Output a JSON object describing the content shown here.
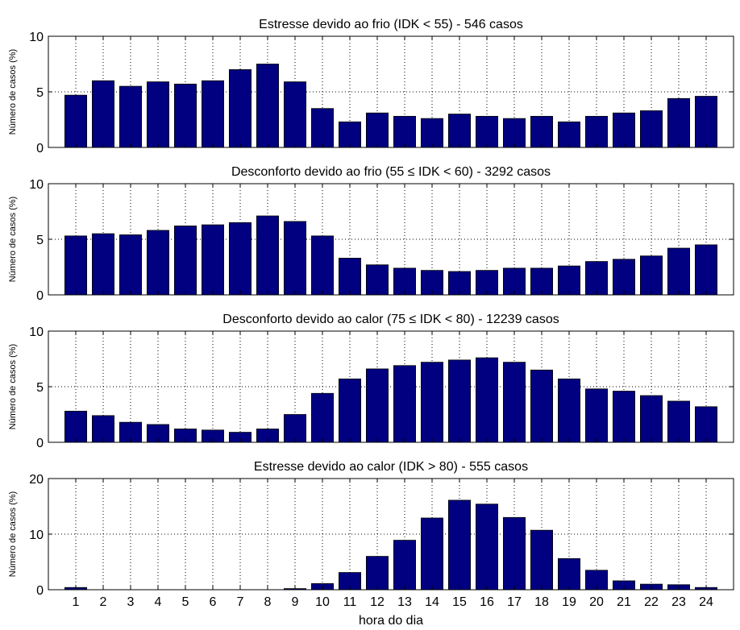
{
  "chart_data": [
    {
      "type": "bar",
      "title": "Estresse devido ao frio (IDK < 55) - 546 casos",
      "ylabel": "Número de casos (%)",
      "xlabel": "",
      "categories": [
        "1",
        "2",
        "3",
        "4",
        "5",
        "6",
        "7",
        "8",
        "9",
        "10",
        "11",
        "12",
        "13",
        "14",
        "15",
        "16",
        "17",
        "18",
        "19",
        "20",
        "21",
        "22",
        "23",
        "24"
      ],
      "values": [
        4.7,
        6.0,
        5.5,
        5.9,
        5.7,
        6.0,
        7.0,
        7.5,
        5.9,
        3.5,
        2.3,
        3.1,
        2.8,
        2.6,
        3.0,
        2.8,
        2.6,
        2.8,
        2.3,
        2.8,
        3.1,
        3.3,
        4.4,
        4.6
      ],
      "ylim": [
        0,
        10
      ],
      "yticks": [
        "0",
        "5",
        "10"
      ],
      "bar_color": "#000080",
      "grid": true
    },
    {
      "type": "bar",
      "title": "Desconforto devido ao frio (55 ≤ IDK < 60) - 3292 casos",
      "ylabel": "Número de casos (%)",
      "xlabel": "",
      "categories": [
        "1",
        "2",
        "3",
        "4",
        "5",
        "6",
        "7",
        "8",
        "9",
        "10",
        "11",
        "12",
        "13",
        "14",
        "15",
        "16",
        "17",
        "18",
        "19",
        "20",
        "21",
        "22",
        "23",
        "24"
      ],
      "values": [
        5.3,
        5.5,
        5.4,
        5.8,
        6.2,
        6.3,
        6.5,
        7.1,
        6.6,
        5.3,
        3.3,
        2.7,
        2.4,
        2.2,
        2.1,
        2.2,
        2.4,
        2.4,
        2.6,
        3.0,
        3.2,
        3.5,
        4.2,
        4.5
      ],
      "ylim": [
        0,
        10
      ],
      "yticks": [
        "0",
        "5",
        "10"
      ],
      "bar_color": "#000080",
      "grid": true
    },
    {
      "type": "bar",
      "title": "Desconforto devido ao calor (75 ≤ IDK < 80) - 12239 casos",
      "ylabel": "Número de casos (%)",
      "xlabel": "",
      "categories": [
        "1",
        "2",
        "3",
        "4",
        "5",
        "6",
        "7",
        "8",
        "9",
        "10",
        "11",
        "12",
        "13",
        "14",
        "15",
        "16",
        "17",
        "18",
        "19",
        "20",
        "21",
        "22",
        "23",
        "24"
      ],
      "values": [
        2.8,
        2.4,
        1.8,
        1.6,
        1.2,
        1.1,
        0.9,
        1.2,
        2.5,
        4.4,
        5.7,
        6.6,
        6.9,
        7.2,
        7.4,
        7.6,
        7.2,
        6.5,
        5.7,
        4.8,
        4.6,
        4.2,
        3.7,
        3.2
      ],
      "ylim": [
        0,
        10
      ],
      "yticks": [
        "0",
        "5",
        "10"
      ],
      "bar_color": "#000080",
      "grid": true
    },
    {
      "type": "bar",
      "title": "Estresse devido ao calor (IDK > 80) - 555 casos",
      "ylabel": "Número de casos (%)",
      "xlabel": "hora do dia",
      "categories": [
        "1",
        "2",
        "3",
        "4",
        "5",
        "6",
        "7",
        "8",
        "9",
        "10",
        "11",
        "12",
        "13",
        "14",
        "15",
        "16",
        "17",
        "18",
        "19",
        "20",
        "21",
        "22",
        "23",
        "24"
      ],
      "values": [
        0.4,
        0,
        0,
        0,
        0,
        0,
        0,
        0,
        0.2,
        1.1,
        3.1,
        6.0,
        8.9,
        12.9,
        16.1,
        15.4,
        13.0,
        10.7,
        5.6,
        3.5,
        1.6,
        1.0,
        0.9,
        0.4
      ],
      "ylim": [
        0,
        20
      ],
      "yticks": [
        "0",
        "10",
        "20"
      ],
      "bar_color": "#000080",
      "grid": true
    }
  ]
}
